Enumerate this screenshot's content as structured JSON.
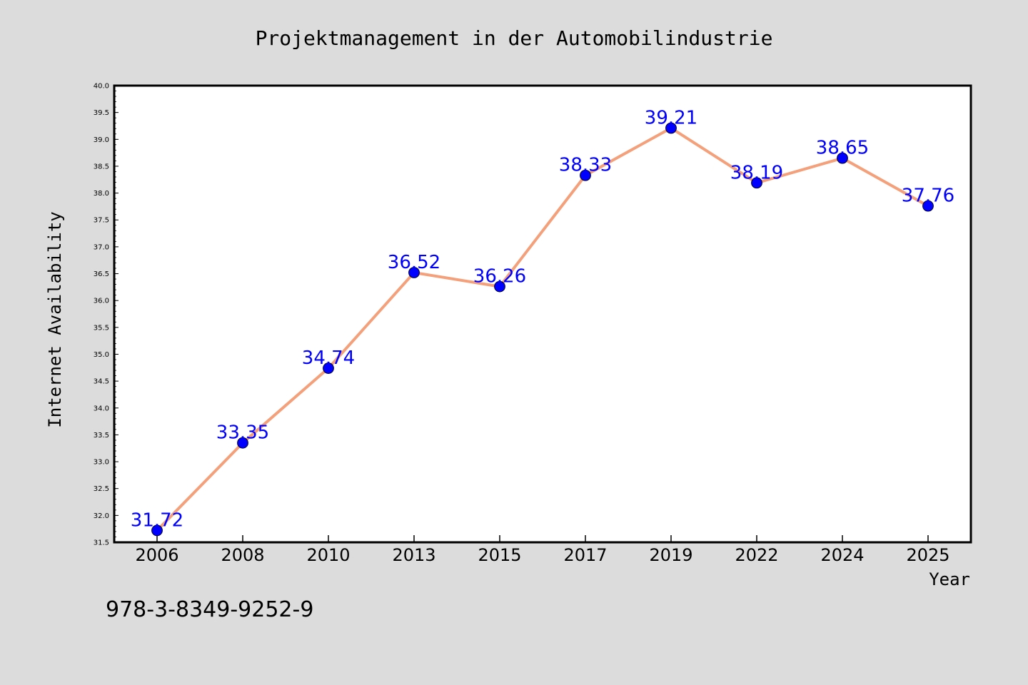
{
  "chart_data": {
    "type": "line",
    "title": "Projektmanagement in der Automobilindustrie",
    "xlabel": "Year",
    "ylabel": "Internet Availability",
    "categories": [
      "2006",
      "2008",
      "2010",
      "2013",
      "2015",
      "2017",
      "2019",
      "2022",
      "2024",
      "2025"
    ],
    "series": [
      {
        "values": [
          31.72,
          33.35,
          34.74,
          36.52,
          36.26,
          38.33,
          39.21,
          38.19,
          38.65,
          37.76
        ],
        "data_labels": [
          "31.72",
          "33.35",
          "34.74",
          "36.52",
          "36.26",
          "38.33",
          "39.21",
          "38.19",
          "38.65",
          "37.76"
        ]
      }
    ],
    "ylim": [
      31.5,
      40.0
    ],
    "yticks": [
      "31.5",
      "32.0",
      "32.5",
      "33.0",
      "33.5",
      "34.0",
      "34.5",
      "35.0",
      "35.5",
      "36.0",
      "36.5",
      "37.0",
      "37.5",
      "38.0",
      "38.5",
      "39.0",
      "39.5",
      "40.0"
    ],
    "grid": false,
    "legend": false,
    "colors": {
      "line": "#f4a07a",
      "marker": "#0000ff",
      "data_label": "#0000ff",
      "background": "#dcdcdc",
      "plot_background": "#ffffff"
    }
  },
  "footer": {
    "isbn": "978-3-8349-9252-9"
  }
}
